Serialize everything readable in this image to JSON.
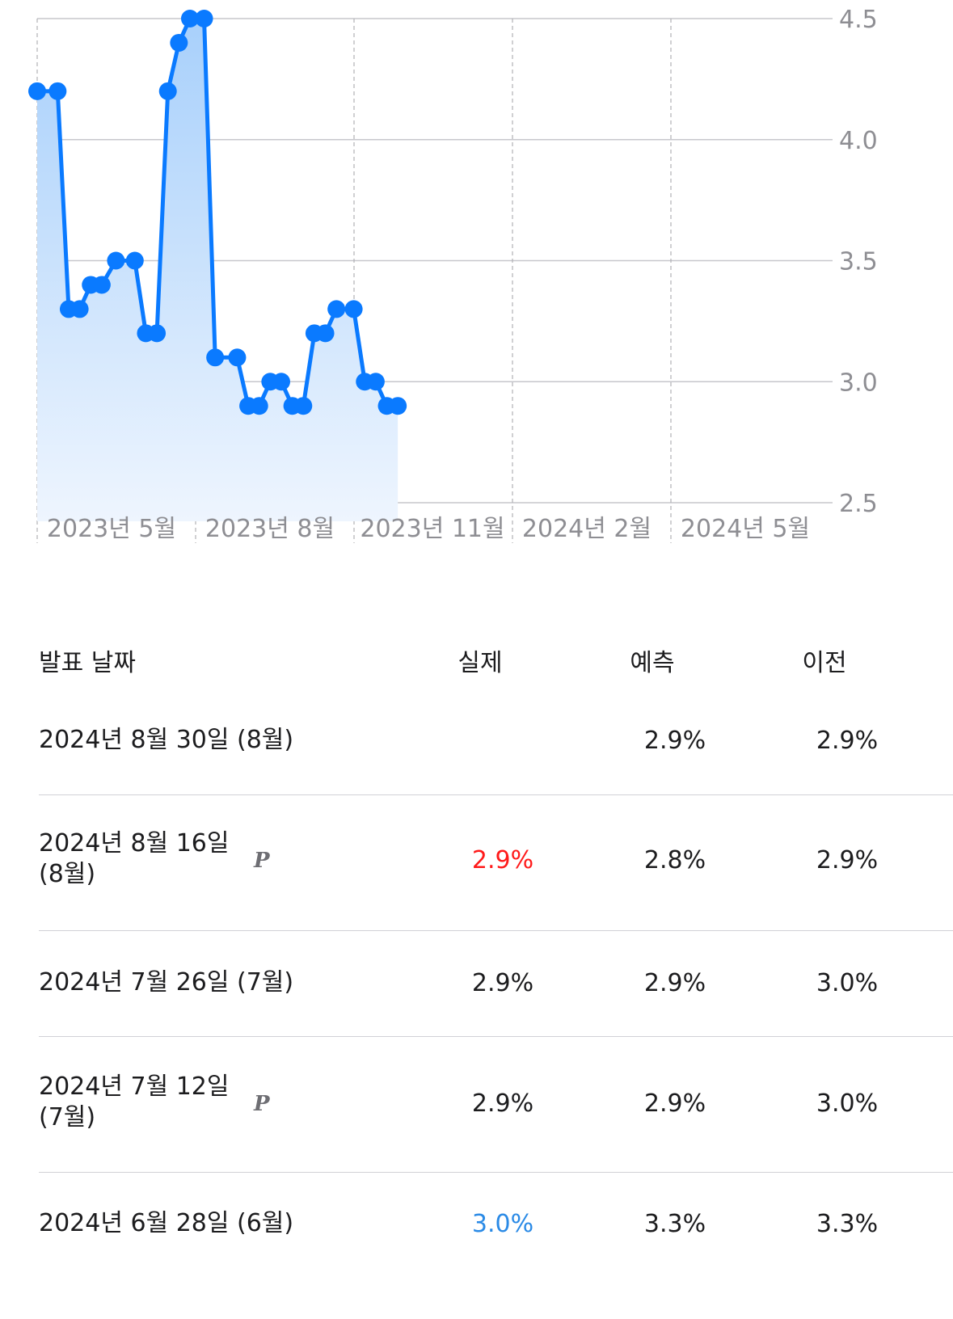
{
  "chart_data": {
    "type": "area",
    "y_ticks": [
      "4.5",
      "4.0",
      "3.5",
      "3.0",
      "2.5"
    ],
    "ylim": [
      2.5,
      4.5
    ],
    "x_labels": [
      "2023년 5월",
      "2023년 8월",
      "2023년 11월",
      "2024년 2월",
      "2024년 5월"
    ],
    "x_range": [
      "2023-04-01",
      "2024-08-16"
    ],
    "series": [
      {
        "points": [
          {
            "x": "2023-04-01",
            "y": 4.2
          },
          {
            "x": "2023-04-14",
            "y": 4.2
          },
          {
            "x": "2023-04-21",
            "y": 3.3
          },
          {
            "x": "2023-04-28",
            "y": 3.3
          },
          {
            "x": "2023-05-05",
            "y": 3.4
          },
          {
            "x": "2023-05-12",
            "y": 3.4
          },
          {
            "x": "2023-05-21",
            "y": 3.5
          },
          {
            "x": "2023-06-02",
            "y": 3.5
          },
          {
            "x": "2023-06-09",
            "y": 3.2
          },
          {
            "x": "2023-06-16",
            "y": 3.2
          },
          {
            "x": "2023-06-23",
            "y": 4.2
          },
          {
            "x": "2023-06-30",
            "y": 4.4
          },
          {
            "x": "2023-07-07",
            "y": 4.5
          },
          {
            "x": "2023-07-16",
            "y": 4.5
          },
          {
            "x": "2023-07-23",
            "y": 3.1
          },
          {
            "x": "2023-08-06",
            "y": 3.1
          },
          {
            "x": "2023-08-13",
            "y": 2.9
          },
          {
            "x": "2023-08-20",
            "y": 2.9
          },
          {
            "x": "2023-08-27",
            "y": 3.0
          },
          {
            "x": "2023-09-03",
            "y": 3.0
          },
          {
            "x": "2023-09-10",
            "y": 2.9
          },
          {
            "x": "2023-09-17",
            "y": 2.9
          },
          {
            "x": "2023-09-24",
            "y": 3.2
          },
          {
            "x": "2023-10-01",
            "y": 3.2
          },
          {
            "x": "2023-10-08",
            "y": 3.3
          },
          {
            "x": "2023-10-19",
            "y": 3.3
          },
          {
            "x": "2023-10-26",
            "y": 3.0
          },
          {
            "x": "2023-11-02",
            "y": 3.0
          },
          {
            "x": "2023-11-09",
            "y": 2.9
          },
          {
            "x": "2023-11-16",
            "y": 2.9
          }
        ]
      }
    ],
    "grid": true,
    "colors": {
      "line": "#0a7aff",
      "fill_top": "#a8d0fb",
      "fill_bottom": "#eef5fe",
      "grid": "#c7c7cc"
    }
  },
  "table": {
    "headers": {
      "date": "발표 날짜",
      "actual": "실제",
      "forecast": "예측",
      "previous": "이전"
    },
    "rows": [
      {
        "date": "2024년 8월 30일 (8월)",
        "preliminary": "",
        "actual": "",
        "actual_color": "#1c1c1e",
        "forecast": "2.9%",
        "previous": "2.9%"
      },
      {
        "date": "2024년 8월 16일 (8월)",
        "preliminary": "P",
        "actual": "2.9%",
        "actual_color": "#ff1a1a",
        "forecast": "2.8%",
        "previous": "2.9%"
      },
      {
        "date": "2024년 7월 26일 (7월)",
        "preliminary": "",
        "actual": "2.9%",
        "actual_color": "#1c1c1e",
        "forecast": "2.9%",
        "previous": "3.0%"
      },
      {
        "date": "2024년 7월 12일 (7월)",
        "preliminary": "P",
        "actual": "2.9%",
        "actual_color": "#1c1c1e",
        "forecast": "2.9%",
        "previous": "3.0%"
      },
      {
        "date": "2024년 6월 28일 (6월)",
        "preliminary": "",
        "actual": "3.0%",
        "actual_color": "#2a8ae6",
        "forecast": "3.3%",
        "previous": "3.3%"
      }
    ]
  }
}
